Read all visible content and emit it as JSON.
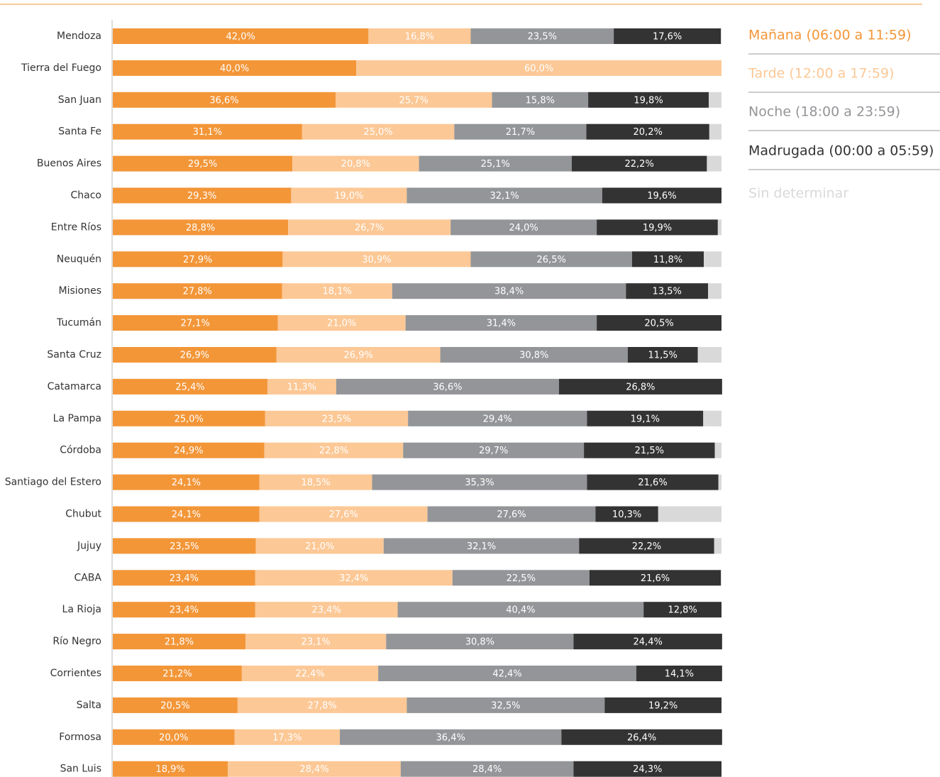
{
  "chart_data": {
    "type": "stacked-bar-horizontal",
    "categories": [
      "Mendoza",
      "Tierra del Fuego",
      "San Juan",
      "Santa Fe",
      "Buenos Aires",
      "Chaco",
      "Entre Ríos",
      "Neuquén",
      "Misiones",
      "Tucumán",
      "Santa Cruz",
      "Catamarca",
      "La Pampa",
      "Córdoba",
      "Santiago del Estero",
      "Chubut",
      "Jujuy",
      "CABA",
      "La Rioja",
      "Río Negro",
      "Corrientes",
      "Salta",
      "Formosa",
      "San Luis"
    ],
    "xlim": [
      0,
      100
    ],
    "series": [
      {
        "name": "Mañana (06:00 a 11:59)",
        "color": "#f39638",
        "values": [
          42.0,
          40.0,
          36.6,
          31.1,
          29.5,
          29.3,
          28.8,
          27.9,
          27.8,
          27.1,
          26.9,
          25.4,
          25.0,
          24.9,
          24.1,
          24.1,
          23.5,
          23.4,
          23.4,
          21.8,
          21.2,
          20.5,
          20.0,
          18.9
        ],
        "value_labels": [
          "42,0%",
          "40,0%",
          "36,6%",
          "31,1%",
          "29,5%",
          "29,3%",
          "28,8%",
          "27,9%",
          "27,8%",
          "27,1%",
          "26,9%",
          "25,4%",
          "25,0%",
          "24,9%",
          "24,1%",
          "24,1%",
          "23,5%",
          "23,4%",
          "23,4%",
          "21,8%",
          "21,2%",
          "20,5%",
          "20,0%",
          "18,9%"
        ]
      },
      {
        "name": "Tarde (12:00 a 17:59)",
        "color": "#fcc896",
        "values": [
          16.8,
          60.0,
          25.7,
          25.0,
          20.8,
          19.0,
          26.7,
          30.9,
          18.1,
          21.0,
          26.9,
          11.3,
          23.5,
          22.8,
          18.5,
          27.6,
          21.0,
          32.4,
          23.4,
          23.1,
          22.4,
          27.8,
          17.3,
          28.4
        ],
        "value_labels": [
          "16,8%",
          "60,0%",
          "25,7%",
          "25,0%",
          "20,8%",
          "19,0%",
          "26,7%",
          "30,9%",
          "18,1%",
          "21,0%",
          "26,9%",
          "11,3%",
          "23,5%",
          "22,8%",
          "18,5%",
          "27,6%",
          "21,0%",
          "32,4%",
          "23,4%",
          "23,1%",
          "22,4%",
          "27,8%",
          "17,3%",
          "28,4%"
        ]
      },
      {
        "name": "Noche (18:00 a 23:59)",
        "color": "#939598",
        "values": [
          23.5,
          0,
          15.8,
          21.7,
          25.1,
          32.1,
          24.0,
          26.5,
          38.4,
          31.4,
          30.8,
          36.6,
          29.4,
          29.7,
          35.3,
          27.6,
          32.1,
          22.5,
          40.4,
          30.8,
          42.4,
          32.5,
          36.4,
          28.4
        ],
        "value_labels": [
          "23,5%",
          null,
          "15,8%",
          "21,7%",
          "25,1%",
          "32,1%",
          "24,0%",
          "26,5%",
          "38,4%",
          "31,4%",
          "30,8%",
          "36,6%",
          "29,4%",
          "29,7%",
          "35,3%",
          "27,6%",
          "32,1%",
          "22,5%",
          "40,4%",
          "30,8%",
          "42,4%",
          "32,5%",
          "36,4%",
          "28,4%"
        ]
      },
      {
        "name": "Madrugada (00:00 a 05:59)",
        "color": "#333333",
        "values": [
          17.6,
          0,
          19.8,
          20.2,
          22.2,
          19.6,
          19.9,
          11.8,
          13.5,
          20.5,
          11.5,
          26.8,
          19.1,
          21.5,
          21.6,
          10.3,
          22.2,
          21.6,
          12.8,
          24.4,
          14.1,
          19.2,
          26.4,
          24.3
        ],
        "value_labels": [
          "17,6%",
          null,
          "19,8%",
          "20,2%",
          "22,2%",
          "19,6%",
          "19,9%",
          "11,8%",
          "13,5%",
          "20,5%",
          "11,5%",
          "26,8%",
          "19,1%",
          "21,5%",
          "21,6%",
          "10,3%",
          "22,2%",
          "21,6%",
          "12,8%",
          "24,4%",
          "14,1%",
          "19,2%",
          "26,4%",
          "24,3%"
        ]
      },
      {
        "name": "Sin determinar",
        "color": "#d9d9d9",
        "values": [
          0.1,
          0,
          2.1,
          2.0,
          2.4,
          0,
          0.6,
          2.9,
          2.2,
          0,
          3.9,
          0,
          3.0,
          1.1,
          0.5,
          10.4,
          1.2,
          0.1,
          0,
          0,
          0,
          0,
          0,
          0
        ]
      }
    ]
  }
}
